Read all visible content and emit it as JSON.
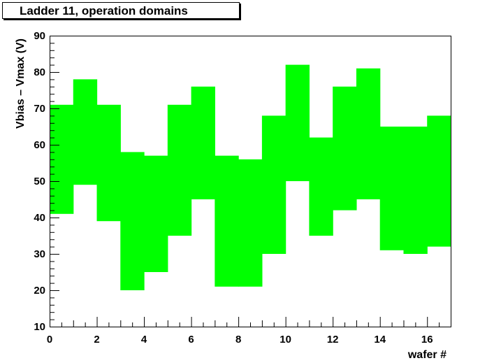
{
  "chart_data": {
    "type": "bar",
    "title": "Ladder 11, operation domains",
    "xlabel": "wafer #",
    "ylabel": "Vbias – Vmax (V)",
    "xlim": [
      0,
      17
    ],
    "ylim": [
      10,
      90
    ],
    "x_ticks": [
      0,
      2,
      4,
      6,
      8,
      10,
      12,
      14,
      16
    ],
    "y_ticks": [
      10,
      20,
      30,
      40,
      50,
      60,
      70,
      80,
      90
    ],
    "fill_color": "#00ff00",
    "bins": [
      {
        "x0": 0,
        "x1": 1,
        "low": 41,
        "high": 71
      },
      {
        "x0": 1,
        "x1": 2,
        "low": 49,
        "high": 78
      },
      {
        "x0": 2,
        "x1": 3,
        "low": 39,
        "high": 71
      },
      {
        "x0": 3,
        "x1": 4,
        "low": 20,
        "high": 58
      },
      {
        "x0": 4,
        "x1": 5,
        "low": 25,
        "high": 57
      },
      {
        "x0": 5,
        "x1": 6,
        "low": 35,
        "high": 71
      },
      {
        "x0": 6,
        "x1": 7,
        "low": 45,
        "high": 76
      },
      {
        "x0": 7,
        "x1": 8,
        "low": 21,
        "high": 57
      },
      {
        "x0": 8,
        "x1": 9,
        "low": 21,
        "high": 56
      },
      {
        "x0": 9,
        "x1": 10,
        "low": 30,
        "high": 68
      },
      {
        "x0": 10,
        "x1": 11,
        "low": 50,
        "high": 82
      },
      {
        "x0": 11,
        "x1": 12,
        "low": 35,
        "high": 62
      },
      {
        "x0": 12,
        "x1": 13,
        "low": 42,
        "high": 76
      },
      {
        "x0": 13,
        "x1": 14,
        "low": 45,
        "high": 81
      },
      {
        "x0": 14,
        "x1": 15,
        "low": 31,
        "high": 65
      },
      {
        "x0": 15,
        "x1": 16,
        "low": 30,
        "high": 65
      },
      {
        "x0": 16,
        "x1": 17,
        "low": 32,
        "high": 68
      }
    ]
  }
}
